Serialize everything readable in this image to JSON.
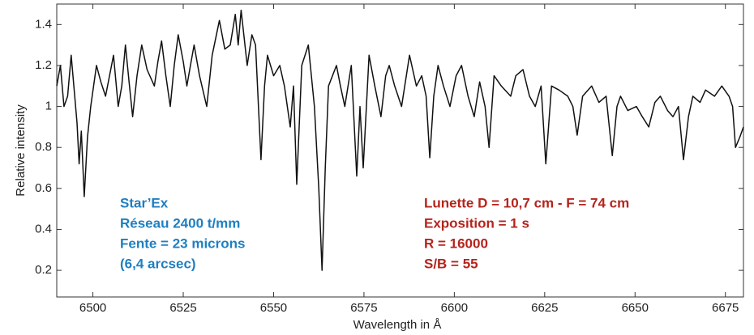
{
  "chart_data": {
    "type": "line",
    "x_label": "Wavelength in Å",
    "y_label": "Relative intensity",
    "xlim": [
      6490,
      6680
    ],
    "ylim": [
      0.07,
      1.5
    ],
    "xticks": [
      6500,
      6525,
      6550,
      6575,
      6600,
      6625,
      6650,
      6675
    ],
    "yticks": [
      0.2,
      0.4,
      0.6,
      0.8,
      1,
      1.2,
      1.4
    ],
    "color": "#111111",
    "x": [
      6490,
      6491,
      6492,
      6493,
      6494,
      6495.6,
      6496.2,
      6496.8,
      6497.6,
      6498.5,
      6499.4,
      6501,
      6502.2,
      6503.5,
      6504.6,
      6505.7,
      6507,
      6508,
      6509,
      6510,
      6511,
      6512.2,
      6513.5,
      6515,
      6517,
      6518,
      6519,
      6520.2,
      6521.4,
      6522.5,
      6523.6,
      6525,
      6526,
      6527,
      6528,
      6529.5,
      6531.5,
      6533,
      6535,
      6536.5,
      6538,
      6539.4,
      6540.2,
      6541,
      6542.7,
      6544,
      6545,
      6546.5,
      6547.5,
      6548.3,
      6550,
      6551.7,
      6553,
      6554.6,
      6555.5,
      6556.4,
      6557.8,
      6559.6,
      6561.3,
      6562.5,
      6563.4,
      6564.3,
      6565.2,
      6567.4,
      6568.5,
      6569.7,
      6571.5,
      6573,
      6573.9,
      6574.8,
      6576.4,
      6578,
      6579.7,
      6581,
      6582,
      6583.5,
      6585.4,
      6587.6,
      6589.5,
      6591,
      6592.2,
      6593.2,
      6594.3,
      6595.5,
      6597,
      6598.8,
      6600.5,
      6602,
      6603.8,
      6605.5,
      6607,
      6608.5,
      6609.6,
      6611,
      6613,
      6615.6,
      6617,
      6619,
      6620.8,
      6622.4,
      6624,
      6625.3,
      6626.9,
      6629,
      6631.4,
      6632.8,
      6634,
      6635.5,
      6638,
      6640,
      6642,
      6643.7,
      6645,
      6646,
      6648,
      6650.4,
      6652,
      6653.8,
      6655.5,
      6657,
      6659,
      6660.5,
      6662,
      6663.4,
      6664.8,
      6666,
      6668,
      6669.5,
      6672,
      6674,
      6676,
      6677,
      6677.8,
      6679,
      6680
    ],
    "values": [
      1.1,
      1.2,
      1.0,
      1.05,
      1.25,
      0.92,
      0.72,
      0.88,
      0.56,
      0.85,
      1.0,
      1.2,
      1.12,
      1.05,
      1.15,
      1.25,
      1.0,
      1.1,
      1.3,
      1.12,
      0.95,
      1.15,
      1.3,
      1.18,
      1.1,
      1.22,
      1.32,
      1.15,
      1.0,
      1.2,
      1.35,
      1.22,
      1.1,
      1.2,
      1.3,
      1.15,
      1.0,
      1.25,
      1.42,
      1.28,
      1.3,
      1.45,
      1.3,
      1.47,
      1.2,
      1.35,
      1.3,
      0.74,
      1.1,
      1.25,
      1.15,
      1.2,
      1.1,
      0.9,
      1.1,
      0.62,
      1.2,
      1.3,
      1.0,
      0.6,
      0.2,
      0.7,
      1.1,
      1.2,
      1.1,
      1.0,
      1.2,
      0.66,
      1.0,
      0.7,
      1.25,
      1.1,
      0.95,
      1.15,
      1.2,
      1.1,
      1.0,
      1.25,
      1.1,
      1.15,
      1.05,
      0.75,
      1.05,
      1.2,
      1.1,
      1.0,
      1.15,
      1.2,
      1.05,
      0.95,
      1.12,
      1.0,
      0.8,
      1.15,
      1.1,
      1.05,
      1.15,
      1.18,
      1.05,
      1.0,
      1.1,
      0.72,
      1.1,
      1.08,
      1.05,
      1.0,
      0.86,
      1.05,
      1.1,
      1.02,
      1.05,
      0.76,
      1.0,
      1.05,
      0.98,
      1.0,
      0.95,
      0.9,
      1.02,
      1.05,
      0.98,
      0.95,
      1.0,
      0.74,
      0.95,
      1.05,
      1.02,
      1.08,
      1.05,
      1.1,
      1.05,
      1.0,
      0.8,
      0.85,
      0.9
    ],
    "annotations_left": [
      "Star’Ex",
      "Réseau 2400 t/mm",
      "Fente = 23 microns",
      "(6,4 arcsec)"
    ],
    "annotations_left_color": "#1f7fc0",
    "annotations_right": [
      "Lunette D = 10,7 cm - F = 74 cm",
      "Exposition = 1 s",
      "R = 16000",
      "S/B = 55"
    ],
    "annotations_right_color": "#b5241c"
  }
}
